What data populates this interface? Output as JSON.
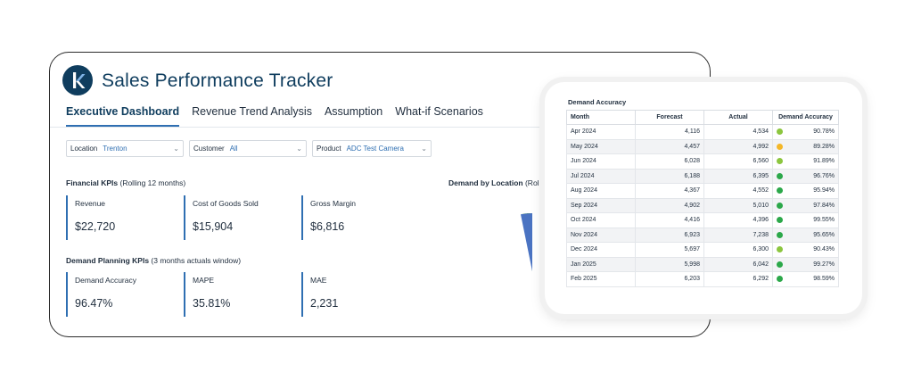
{
  "app": {
    "title": "Sales Performance Tracker"
  },
  "tabs": [
    {
      "label": "Executive Dashboard",
      "active": true
    },
    {
      "label": "Revenue Trend Analysis",
      "active": false
    },
    {
      "label": "Assumption",
      "active": false
    },
    {
      "label": "What-if Scenarios",
      "active": false
    }
  ],
  "filters": {
    "location": {
      "label": "Location",
      "value": "Trenton"
    },
    "customer": {
      "label": "Customer",
      "value": "All"
    },
    "product": {
      "label": "Product",
      "value": "ADC Test Camera"
    }
  },
  "financial": {
    "heading": "Financial KPIs",
    "subheading": "(Rolling 12 months)",
    "kpis": [
      {
        "label": "Revenue",
        "value": "$22,720"
      },
      {
        "label": "Cost of Goods Sold",
        "value": "$15,904"
      },
      {
        "label": "Gross Margin",
        "value": "$6,816"
      }
    ]
  },
  "demand_planning": {
    "heading": "Demand Planning KPIs",
    "subheading": "(3 months actuals window)",
    "kpis": [
      {
        "label": "Demand Accuracy",
        "value": "96.47%"
      },
      {
        "label": "MAPE",
        "value": "35.81%"
      },
      {
        "label": "MAE",
        "value": "2,231"
      }
    ]
  },
  "location_chart": {
    "heading": "Demand by Location",
    "subheading": "(Rolling",
    "colors": [
      "#6ab04c",
      "#4a73c2"
    ]
  },
  "demand_accuracy_table": {
    "title": "Demand Accuracy",
    "columns": [
      "Month",
      "Forecast",
      "Actual",
      "Demand Accuracy"
    ],
    "status_colors": {
      "green": "#2ca84a",
      "lightgreen": "#8cc63f",
      "yellow": "#f4b728"
    },
    "rows": [
      {
        "month": "Apr 2024",
        "forecast": "4,116",
        "actual": "4,534",
        "status": "lightgreen",
        "accuracy": "90.78%"
      },
      {
        "month": "May 2024",
        "forecast": "4,457",
        "actual": "4,992",
        "status": "yellow",
        "accuracy": "89.28%"
      },
      {
        "month": "Jun 2024",
        "forecast": "6,028",
        "actual": "6,560",
        "status": "lightgreen",
        "accuracy": "91.89%"
      },
      {
        "month": "Jul 2024",
        "forecast": "6,188",
        "actual": "6,395",
        "status": "green",
        "accuracy": "96.76%"
      },
      {
        "month": "Aug 2024",
        "forecast": "4,367",
        "actual": "4,552",
        "status": "green",
        "accuracy": "95.94%"
      },
      {
        "month": "Sep 2024",
        "forecast": "4,902",
        "actual": "5,010",
        "status": "green",
        "accuracy": "97.84%"
      },
      {
        "month": "Oct 2024",
        "forecast": "4,416",
        "actual": "4,396",
        "status": "green",
        "accuracy": "99.55%"
      },
      {
        "month": "Nov 2024",
        "forecast": "6,923",
        "actual": "7,238",
        "status": "green",
        "accuracy": "95.65%"
      },
      {
        "month": "Dec 2024",
        "forecast": "5,697",
        "actual": "6,300",
        "status": "lightgreen",
        "accuracy": "90.43%"
      },
      {
        "month": "Jan 2025",
        "forecast": "5,998",
        "actual": "6,042",
        "status": "green",
        "accuracy": "99.27%"
      },
      {
        "month": "Feb 2025",
        "forecast": "6,203",
        "actual": "6,292",
        "status": "green",
        "accuracy": "98.59%"
      }
    ]
  },
  "icons": {
    "logo": "k-logo-icon",
    "dropdown": "chevron-down-icon"
  }
}
